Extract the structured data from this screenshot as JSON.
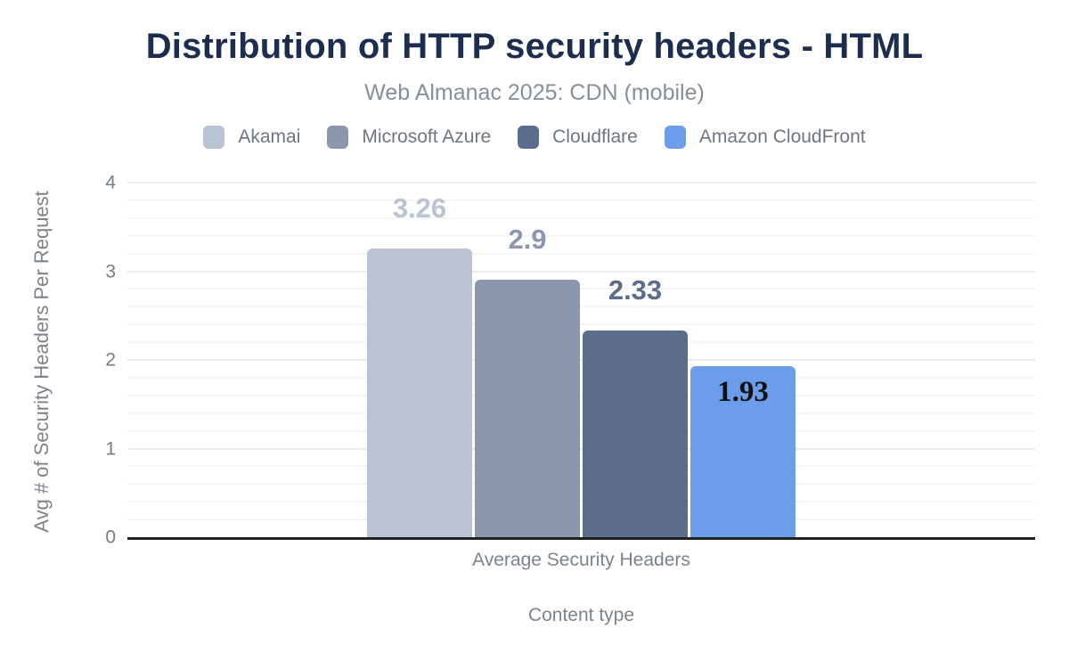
{
  "title": "Distribution of HTTP security headers - HTML",
  "subtitle": "Web Almanac 2025: CDN (mobile)",
  "colors": {
    "title_text": "#1d2d4e",
    "subtitle_text": "#878f9b",
    "axis_text": "#757d87",
    "axis_line": "#212121",
    "grid_major": "#ececec",
    "grid_minor": "#f5f5f5",
    "background": "#ffffff"
  },
  "legend": {
    "position": "top",
    "items": [
      {
        "label": "Akamai",
        "color": "#b9c3d3"
      },
      {
        "label": "Microsoft Azure",
        "color": "#8c97ad"
      },
      {
        "label": "Cloudflare",
        "color": "#5c6d8b"
      },
      {
        "label": "Amazon CloudFront",
        "color": "#6c9dea"
      }
    ]
  },
  "axes": {
    "ylabel": "Avg # of Security Headers Per Request",
    "xlabel": "Content type",
    "xtick_label": "Average Security Headers",
    "yticks": [
      0,
      1,
      2,
      3,
      4
    ]
  },
  "chart_data": {
    "type": "bar",
    "title": "Distribution of HTTP security headers - HTML",
    "subtitle": "Web Almanac 2025: CDN (mobile)",
    "categories": [
      "Average Security Headers"
    ],
    "series": [
      {
        "name": "Akamai",
        "values": [
          3.26
        ],
        "color": "#b9c3d3",
        "data_label": "3.26",
        "label_color": "#b9c3d3",
        "label_inside": false
      },
      {
        "name": "Microsoft Azure",
        "values": [
          2.9
        ],
        "color": "#8c97ad",
        "data_label": "2.9",
        "label_color": "#8c97ad",
        "label_inside": false
      },
      {
        "name": "Cloudflare",
        "values": [
          2.33
        ],
        "color": "#5c6d8b",
        "data_label": "2.33",
        "label_color": "#5c6d8b",
        "label_inside": false
      },
      {
        "name": "Amazon CloudFront",
        "values": [
          1.93
        ],
        "color": "#6c9dea",
        "data_label": "1.93",
        "label_color": "#111111",
        "label_inside": true
      }
    ],
    "xlabel": "Content type",
    "ylabel": "Avg # of Security Headers Per Request",
    "ylim": [
      0,
      4
    ],
    "yticks": [
      0,
      1,
      2,
      3,
      4
    ],
    "minor_grid_step": 0.2,
    "grid": true,
    "legend_position": "top"
  }
}
